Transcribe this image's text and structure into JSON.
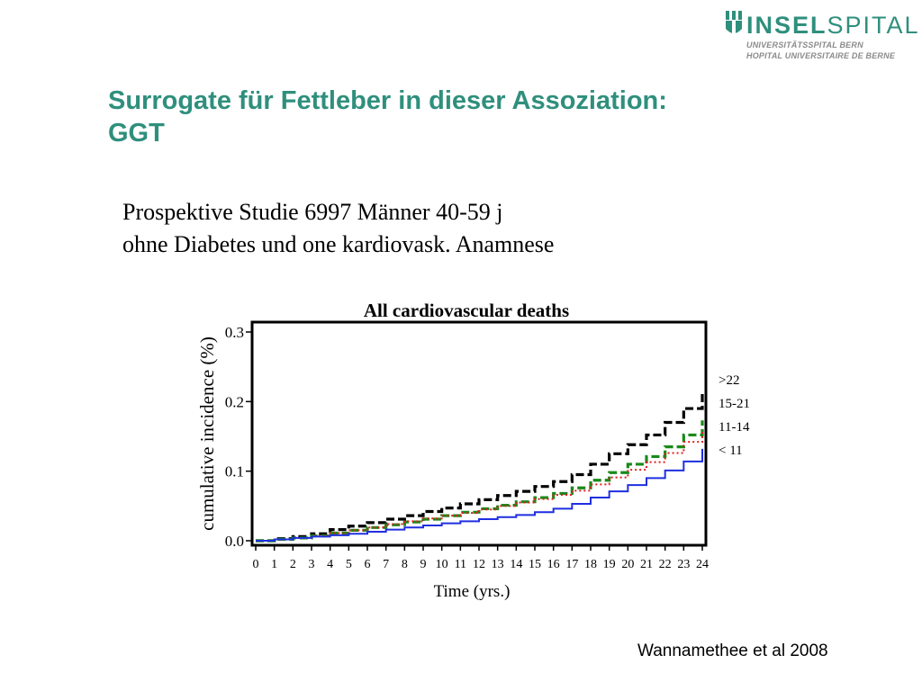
{
  "logo": {
    "name_bold": "INSEL",
    "name_light": "SPITAL",
    "line1": "UNIVERSITÄTSSPITAL BERN",
    "line2": "HOPITAL UNIVERSITAIRE DE BERNE"
  },
  "slide": {
    "title_line1": "Surrogate für Fettleber in dieser Assoziation:",
    "title_line2": "GGT",
    "subtitle_line1": "Prospektive Studie 6997 Männer 40-59 j",
    "subtitle_line2": "ohne Diabetes und one kardiovask. Anamnese",
    "citation": "Wannamethee et al 2008"
  },
  "colors": {
    "brand": "#2f8f7d",
    "series_gt22": "#000000",
    "series_15_21": "#1a8a1a",
    "series_11_14": "#e02020",
    "series_lt11": "#1f2fe0"
  },
  "chart_data": {
    "type": "line",
    "title": "All cardiovascular deaths",
    "xlabel": "Time (yrs.)",
    "ylabel": "cumulative incidence (%)",
    "xlim": [
      0,
      24
    ],
    "ylim": [
      0,
      0.3
    ],
    "xticks": [
      "0",
      "1",
      "2",
      "3",
      "4",
      "5",
      "6",
      "7",
      "8",
      "9",
      "10",
      "11",
      "12",
      "13",
      "14",
      "15",
      "16",
      "17",
      "18",
      "19",
      "20",
      "21",
      "22",
      "23",
      "24"
    ],
    "yticks": [
      "0.0",
      "0.1",
      "0.2",
      "0.3"
    ],
    "grid": false,
    "legend_position": "right",
    "x": [
      0,
      1,
      2,
      3,
      4,
      5,
      6,
      7,
      8,
      9,
      10,
      11,
      12,
      13,
      14,
      15,
      16,
      17,
      18,
      19,
      20,
      21,
      22,
      23,
      24
    ],
    "series": [
      {
        "name": ">22",
        "style": "dashed",
        "color": "#000000",
        "values": [
          0,
          0.003,
          0.006,
          0.01,
          0.016,
          0.021,
          0.026,
          0.031,
          0.036,
          0.042,
          0.047,
          0.053,
          0.059,
          0.065,
          0.071,
          0.078,
          0.085,
          0.095,
          0.11,
          0.125,
          0.138,
          0.152,
          0.17,
          0.19,
          0.214
        ]
      },
      {
        "name": "15-21",
        "style": "dashed",
        "color": "#1a8a1a",
        "values": [
          0,
          0.002,
          0.004,
          0.007,
          0.011,
          0.015,
          0.019,
          0.023,
          0.027,
          0.031,
          0.036,
          0.041,
          0.046,
          0.051,
          0.056,
          0.062,
          0.068,
          0.076,
          0.087,
          0.098,
          0.11,
          0.121,
          0.135,
          0.152,
          0.173
        ]
      },
      {
        "name": "11-14",
        "style": "dotted",
        "color": "#e02020",
        "values": [
          0,
          0.002,
          0.004,
          0.007,
          0.011,
          0.015,
          0.019,
          0.024,
          0.028,
          0.032,
          0.036,
          0.04,
          0.045,
          0.05,
          0.055,
          0.06,
          0.066,
          0.072,
          0.081,
          0.091,
          0.102,
          0.113,
          0.126,
          0.142,
          0.158
        ]
      },
      {
        "name": "< 11",
        "style": "solid",
        "color": "#1f2fe0",
        "values": [
          0,
          0.002,
          0.004,
          0.006,
          0.008,
          0.01,
          0.013,
          0.016,
          0.019,
          0.022,
          0.025,
          0.028,
          0.031,
          0.034,
          0.037,
          0.041,
          0.046,
          0.053,
          0.062,
          0.071,
          0.08,
          0.09,
          0.101,
          0.114,
          0.132
        ]
      }
    ]
  }
}
